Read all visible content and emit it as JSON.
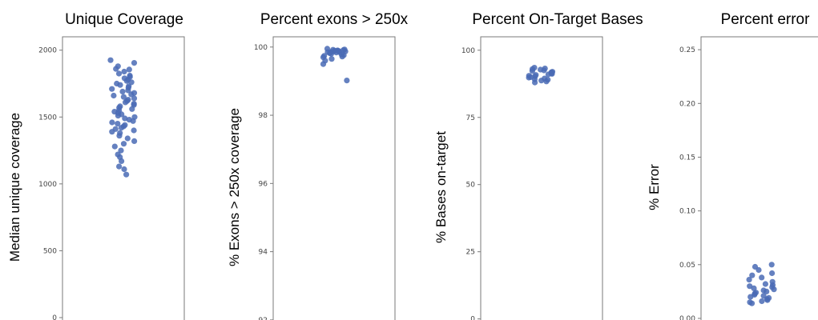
{
  "chart_data": [
    {
      "type": "scatter",
      "title": "Unique Coverage",
      "ylabel": "Median unique coverage",
      "ylim": [
        -30,
        2100
      ],
      "yticks": [
        0,
        500,
        1000,
        1500,
        2000
      ],
      "point_color": "#4a6bb5",
      "points": [
        1925,
        1905,
        1880,
        1860,
        1855,
        1840,
        1825,
        1810,
        1800,
        1790,
        1780,
        1770,
        1760,
        1750,
        1740,
        1730,
        1720,
        1710,
        1700,
        1690,
        1680,
        1670,
        1660,
        1650,
        1640,
        1630,
        1620,
        1610,
        1600,
        1590,
        1580,
        1570,
        1560,
        1550,
        1540,
        1530,
        1520,
        1510,
        1500,
        1490,
        1480,
        1470,
        1460,
        1450,
        1440,
        1430,
        1420,
        1410,
        1400,
        1390,
        1380,
        1360,
        1340,
        1320,
        1300,
        1280,
        1250,
        1220,
        1200,
        1170,
        1130,
        1110,
        1070
      ]
    },
    {
      "type": "scatter",
      "title": "Percent exons > 250x",
      "ylabel": "% Exons > 250x coverage",
      "ylim": [
        91.95,
        100.3
      ],
      "yticks": [
        92,
        94,
        96,
        98,
        100
      ],
      "point_color": "#4a6bb5",
      "points": [
        99.95,
        99.93,
        99.92,
        99.91,
        99.9,
        99.9,
        99.89,
        99.88,
        99.88,
        99.87,
        99.86,
        99.85,
        99.85,
        99.84,
        99.83,
        99.82,
        99.8,
        99.78,
        99.76,
        99.74,
        99.72,
        99.7,
        99.65,
        99.6,
        99.5,
        99.02
      ]
    },
    {
      "type": "scatter",
      "title": "Percent On-Target Bases",
      "ylabel": "% Bases on-target",
      "ylim": [
        -1,
        105
      ],
      "yticks": [
        0,
        25,
        50,
        75,
        100
      ],
      "point_color": "#4a6bb5",
      "points": [
        93.5,
        93.2,
        93,
        92.8,
        92.5,
        92.3,
        92,
        91.8,
        91.6,
        91.4,
        91.2,
        91,
        90.8,
        90.5,
        90.3,
        90,
        89.8,
        89.5,
        89.2,
        89,
        88.7,
        88.4,
        88
      ]
    },
    {
      "type": "scatter",
      "title": "Percent error",
      "ylabel": "% Error",
      "ylim": [
        -0.003,
        0.262
      ],
      "yticks": [
        "0.00",
        "0.05",
        "0.10",
        "0.15",
        "0.20",
        "0.25"
      ],
      "point_color": "#4a6bb5",
      "points": [
        0.05,
        0.048,
        0.045,
        0.042,
        0.04,
        0.038,
        0.036,
        0.034,
        0.032,
        0.031,
        0.03,
        0.029,
        0.028,
        0.027,
        0.026,
        0.025,
        0.024,
        0.023,
        0.022,
        0.021,
        0.02,
        0.019,
        0.018,
        0.017,
        0.016,
        0.015,
        0.014
      ]
    }
  ]
}
